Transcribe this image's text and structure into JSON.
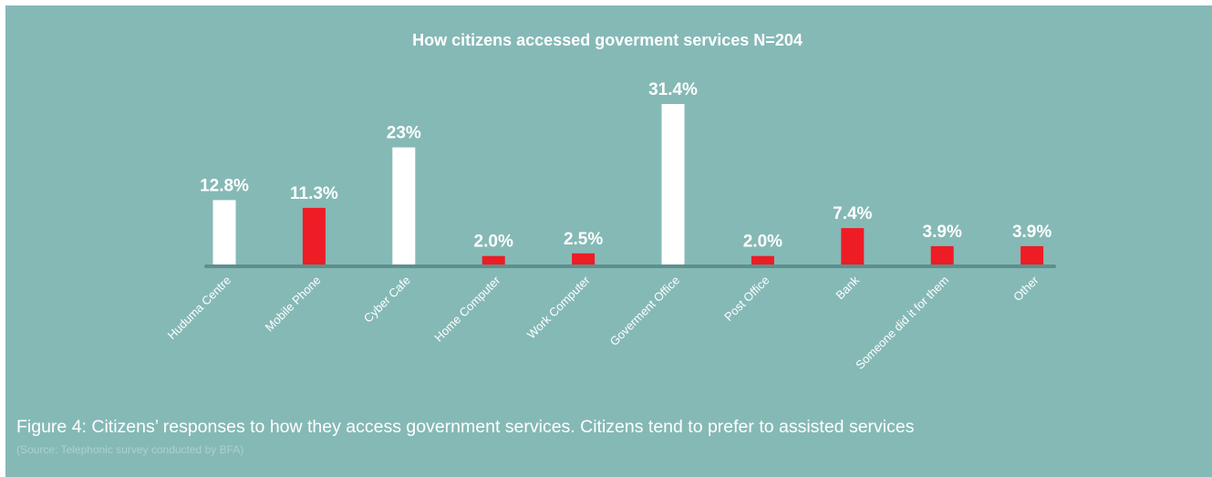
{
  "chart_data": {
    "type": "bar",
    "title": "How citizens accessed goverment services N=204",
    "categories": [
      "Huduma Centre",
      "Mobile Phone",
      "Cyber Cafe",
      "Home Computer",
      "Work Computer",
      "Goverment Office",
      "Post Office",
      "Bank",
      "Someone did it for them",
      "Other"
    ],
    "values": [
      12.8,
      11.3,
      23,
      2.0,
      2.5,
      31.4,
      2.0,
      7.4,
      3.9,
      3.9
    ],
    "value_labels": [
      "12.8%",
      "11.3%",
      "23%",
      "2.0%",
      "2.5%",
      "31.4%",
      "2.0%",
      "7.4%",
      "3.9%",
      "3.9%"
    ],
    "bar_colors": [
      "#ffffff",
      "#ee1c25",
      "#ffffff",
      "#ee1c25",
      "#ee1c25",
      "#ffffff",
      "#ee1c25",
      "#ee1c25",
      "#ee1c25",
      "#ee1c25"
    ],
    "ylim": [
      0,
      31.4
    ],
    "grid": false,
    "legend": "none",
    "axis_color": "#5f8f8c",
    "background": "#85b9b6"
  },
  "caption": {
    "text": "Figure 4: Citizens’ responses to how they access government services. Citizens tend to prefer to assisted services",
    "source": "(Source: Telephonic survey conducted by BFA)"
  }
}
